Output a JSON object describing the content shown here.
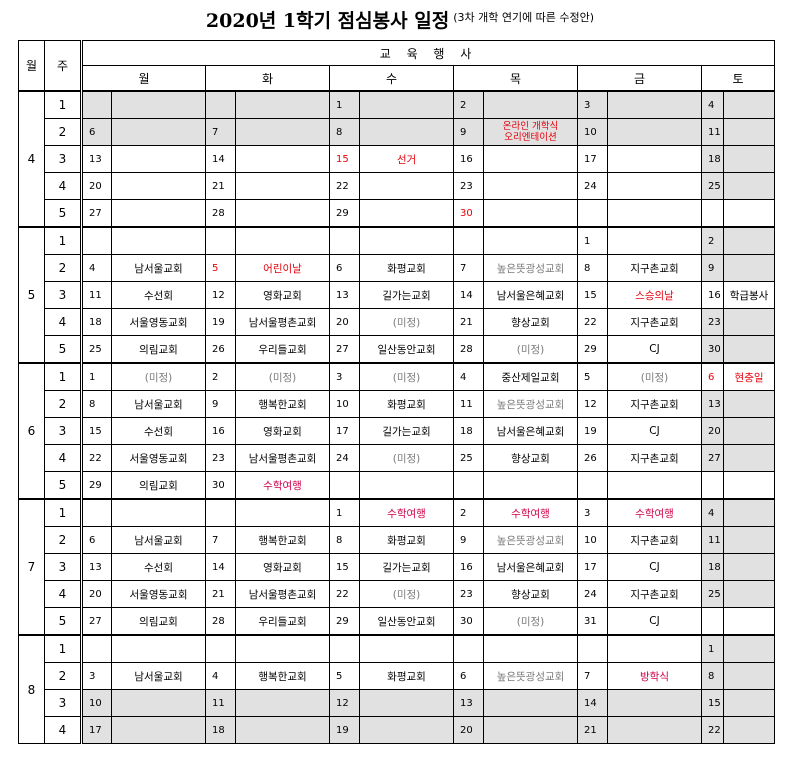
{
  "title": "2020년 1학기 점심봉사 일정",
  "subtitle": "(3차 개학 연기에 따른 수정안)",
  "headers": {
    "month": "월",
    "week": "주",
    "edu": "교 육 행 사",
    "days": [
      "월",
      "화",
      "수",
      "목",
      "금",
      "토"
    ]
  },
  "months": [
    {
      "label": "4",
      "weeks": [
        {
          "w": "1",
          "cells": [
            {
              "d": "",
              "e": "",
              "s": true
            },
            {
              "d": "",
              "e": "",
              "s": true
            },
            {
              "d": "1",
              "e": "",
              "s": true
            },
            {
              "d": "2",
              "e": "",
              "s": true
            },
            {
              "d": "3",
              "e": "",
              "s": true
            },
            {
              "d": "4",
              "e": "",
              "s": true
            }
          ]
        },
        {
          "w": "2",
          "cells": [
            {
              "d": "6",
              "e": "",
              "s": true
            },
            {
              "d": "7",
              "e": "",
              "s": true
            },
            {
              "d": "8",
              "e": "",
              "s": true
            },
            {
              "d": "9",
              "e": "온라인 개학식\n오리엔테이션",
              "s": true,
              "c": "holiday",
              "small": true
            },
            {
              "d": "10",
              "e": "",
              "s": true
            },
            {
              "d": "11",
              "e": "",
              "s": true
            }
          ]
        },
        {
          "w": "3",
          "cells": [
            {
              "d": "13",
              "e": ""
            },
            {
              "d": "14",
              "e": ""
            },
            {
              "d": "15",
              "e": "선거",
              "c": "holiday",
              "dc": "holiday"
            },
            {
              "d": "16",
              "e": ""
            },
            {
              "d": "17",
              "e": ""
            },
            {
              "d": "18",
              "e": "",
              "s": true
            }
          ]
        },
        {
          "w": "4",
          "cells": [
            {
              "d": "20",
              "e": ""
            },
            {
              "d": "21",
              "e": ""
            },
            {
              "d": "22",
              "e": ""
            },
            {
              "d": "23",
              "e": ""
            },
            {
              "d": "24",
              "e": ""
            },
            {
              "d": "25",
              "e": "",
              "s": true
            }
          ]
        },
        {
          "w": "5",
          "cells": [
            {
              "d": "27",
              "e": ""
            },
            {
              "d": "28",
              "e": ""
            },
            {
              "d": "29",
              "e": ""
            },
            {
              "d": "30",
              "e": "",
              "dc": "holiday"
            },
            {
              "d": "",
              "e": ""
            },
            {
              "d": "",
              "e": ""
            }
          ]
        }
      ]
    },
    {
      "label": "5",
      "weeks": [
        {
          "w": "1",
          "cells": [
            {
              "d": "",
              "e": ""
            },
            {
              "d": "",
              "e": ""
            },
            {
              "d": "",
              "e": ""
            },
            {
              "d": "",
              "e": ""
            },
            {
              "d": "1",
              "e": ""
            },
            {
              "d": "2",
              "e": "",
              "s": true
            }
          ]
        },
        {
          "w": "2",
          "cells": [
            {
              "d": "4",
              "e": "남서울교회"
            },
            {
              "d": "5",
              "e": "어린이날",
              "c": "holiday",
              "dc": "holiday"
            },
            {
              "d": "6",
              "e": "화평교회"
            },
            {
              "d": "7",
              "e": "높은뜻광성교회",
              "c": "gray"
            },
            {
              "d": "8",
              "e": "지구촌교회"
            },
            {
              "d": "9",
              "e": "",
              "s": true
            }
          ]
        },
        {
          "w": "3",
          "cells": [
            {
              "d": "11",
              "e": "수선회"
            },
            {
              "d": "12",
              "e": "영화교회"
            },
            {
              "d": "13",
              "e": "길가는교회"
            },
            {
              "d": "14",
              "e": "남서울은혜교회"
            },
            {
              "d": "15",
              "e": "스승의날",
              "c": "holiday"
            },
            {
              "d": "16",
              "e": "학급봉사"
            }
          ]
        },
        {
          "w": "4",
          "cells": [
            {
              "d": "18",
              "e": "서울영동교회"
            },
            {
              "d": "19",
              "e": "남서울평촌교회"
            },
            {
              "d": "20",
              "e": "(미정)",
              "c": "gray"
            },
            {
              "d": "21",
              "e": "향상교회"
            },
            {
              "d": "22",
              "e": "지구촌교회"
            },
            {
              "d": "23",
              "e": "",
              "s": true
            }
          ]
        },
        {
          "w": "5",
          "cells": [
            {
              "d": "25",
              "e": "의림교회"
            },
            {
              "d": "26",
              "e": "우리들교회"
            },
            {
              "d": "27",
              "e": "일산동안교회"
            },
            {
              "d": "28",
              "e": "(미정)",
              "c": "gray"
            },
            {
              "d": "29",
              "e": "CJ"
            },
            {
              "d": "30",
              "e": "",
              "s": true
            }
          ]
        }
      ]
    },
    {
      "label": "6",
      "weeks": [
        {
          "w": "1",
          "cells": [
            {
              "d": "1",
              "e": "(미정)",
              "c": "gray"
            },
            {
              "d": "2",
              "e": "(미정)",
              "c": "gray"
            },
            {
              "d": "3",
              "e": "(미정)",
              "c": "gray"
            },
            {
              "d": "4",
              "e": "중산제일교회"
            },
            {
              "d": "5",
              "e": "(미정)",
              "c": "gray"
            },
            {
              "d": "6",
              "e": "현충일",
              "c": "holiday",
              "dc": "holiday"
            }
          ]
        },
        {
          "w": "2",
          "cells": [
            {
              "d": "8",
              "e": "남서울교회"
            },
            {
              "d": "9",
              "e": "행복한교회"
            },
            {
              "d": "10",
              "e": "화평교회"
            },
            {
              "d": "11",
              "e": "높은뜻광성교회",
              "c": "gray"
            },
            {
              "d": "12",
              "e": "지구촌교회"
            },
            {
              "d": "13",
              "e": "",
              "s": true
            }
          ]
        },
        {
          "w": "3",
          "cells": [
            {
              "d": "15",
              "e": "수선회"
            },
            {
              "d": "16",
              "e": "영화교회"
            },
            {
              "d": "17",
              "e": "길가는교회"
            },
            {
              "d": "18",
              "e": "남서울은혜교회"
            },
            {
              "d": "19",
              "e": "CJ"
            },
            {
              "d": "20",
              "e": "",
              "s": true
            }
          ]
        },
        {
          "w": "4",
          "cells": [
            {
              "d": "22",
              "e": "서울영동교회"
            },
            {
              "d": "23",
              "e": "남서울평촌교회"
            },
            {
              "d": "24",
              "e": "(미정)",
              "c": "gray"
            },
            {
              "d": "25",
              "e": "향상교회"
            },
            {
              "d": "26",
              "e": "지구촌교회"
            },
            {
              "d": "27",
              "e": "",
              "s": true
            }
          ]
        },
        {
          "w": "5",
          "cells": [
            {
              "d": "29",
              "e": "의림교회"
            },
            {
              "d": "30",
              "e": "수학여행",
              "c": "trip"
            },
            {
              "d": "",
              "e": ""
            },
            {
              "d": "",
              "e": ""
            },
            {
              "d": "",
              "e": ""
            },
            {
              "d": "",
              "e": ""
            }
          ]
        }
      ]
    },
    {
      "label": "7",
      "weeks": [
        {
          "w": "1",
          "cells": [
            {
              "d": "",
              "e": ""
            },
            {
              "d": "",
              "e": ""
            },
            {
              "d": "1",
              "e": "수학여행",
              "c": "trip"
            },
            {
              "d": "2",
              "e": "수학여행",
              "c": "trip"
            },
            {
              "d": "3",
              "e": "수학여행",
              "c": "trip"
            },
            {
              "d": "4",
              "e": "",
              "s": true
            }
          ]
        },
        {
          "w": "2",
          "cells": [
            {
              "d": "6",
              "e": "남서울교회"
            },
            {
              "d": "7",
              "e": "행복한교회"
            },
            {
              "d": "8",
              "e": "화평교회"
            },
            {
              "d": "9",
              "e": "높은뜻광성교회",
              "c": "gray"
            },
            {
              "d": "10",
              "e": "지구촌교회"
            },
            {
              "d": "11",
              "e": "",
              "s": true
            }
          ]
        },
        {
          "w": "3",
          "cells": [
            {
              "d": "13",
              "e": "수선회"
            },
            {
              "d": "14",
              "e": "영화교회"
            },
            {
              "d": "15",
              "e": "길가는교회"
            },
            {
              "d": "16",
              "e": "남서울은혜교회"
            },
            {
              "d": "17",
              "e": "CJ"
            },
            {
              "d": "18",
              "e": "",
              "s": true
            }
          ]
        },
        {
          "w": "4",
          "cells": [
            {
              "d": "20",
              "e": "서울영동교회"
            },
            {
              "d": "21",
              "e": "남서울평촌교회"
            },
            {
              "d": "22",
              "e": "(미정)",
              "c": "gray"
            },
            {
              "d": "23",
              "e": "향상교회"
            },
            {
              "d": "24",
              "e": "지구촌교회"
            },
            {
              "d": "25",
              "e": "",
              "s": true
            }
          ]
        },
        {
          "w": "5",
          "cells": [
            {
              "d": "27",
              "e": "의림교회"
            },
            {
              "d": "28",
              "e": "우리들교회"
            },
            {
              "d": "29",
              "e": "일산동안교회"
            },
            {
              "d": "30",
              "e": "(미정)",
              "c": "gray"
            },
            {
              "d": "31",
              "e": "CJ"
            },
            {
              "d": "",
              "e": ""
            }
          ]
        }
      ]
    },
    {
      "label": "8",
      "weeks": [
        {
          "w": "1",
          "cells": [
            {
              "d": "",
              "e": ""
            },
            {
              "d": "",
              "e": ""
            },
            {
              "d": "",
              "e": ""
            },
            {
              "d": "",
              "e": ""
            },
            {
              "d": "",
              "e": ""
            },
            {
              "d": "1",
              "e": "",
              "s": true
            }
          ]
        },
        {
          "w": "2",
          "cells": [
            {
              "d": "3",
              "e": "남서울교회"
            },
            {
              "d": "4",
              "e": "행복한교회"
            },
            {
              "d": "5",
              "e": "화평교회"
            },
            {
              "d": "6",
              "e": "높은뜻광성교회",
              "c": "gray"
            },
            {
              "d": "7",
              "e": "방학식",
              "c": "trip"
            },
            {
              "d": "8",
              "e": "",
              "s": true
            }
          ]
        },
        {
          "w": "3",
          "cells": [
            {
              "d": "10",
              "e": "",
              "s": true
            },
            {
              "d": "11",
              "e": "",
              "s": true
            },
            {
              "d": "12",
              "e": "",
              "s": true
            },
            {
              "d": "13",
              "e": "",
              "s": true
            },
            {
              "d": "14",
              "e": "",
              "s": true
            },
            {
              "d": "15",
              "e": "",
              "s": true
            }
          ]
        },
        {
          "w": "4",
          "cells": [
            {
              "d": "17",
              "e": "",
              "s": true
            },
            {
              "d": "18",
              "e": "",
              "s": true
            },
            {
              "d": "19",
              "e": "",
              "s": true
            },
            {
              "d": "20",
              "e": "",
              "s": true
            },
            {
              "d": "21",
              "e": "",
              "s": true
            },
            {
              "d": "22",
              "e": "",
              "s": true
            }
          ]
        }
      ]
    }
  ]
}
